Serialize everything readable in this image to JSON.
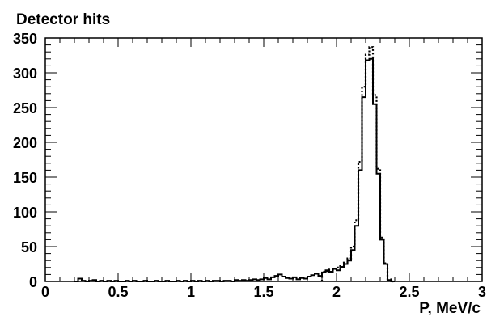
{
  "chart_data": {
    "type": "histogram",
    "title": "Detector hits",
    "xlabel": "P, MeV/c",
    "ylabel": "",
    "xlim": [
      0,
      3
    ],
    "ylim": [
      0,
      350
    ],
    "x_ticks": [
      "0",
      "0.5",
      "1",
      "1.5",
      "2",
      "2.5",
      "3"
    ],
    "y_ticks": [
      "0",
      "50",
      "100",
      "150",
      "200",
      "250",
      "300",
      "350"
    ],
    "grid": false,
    "legend": "none",
    "bin_width": 0.025,
    "series": [
      {
        "style": "solid-step",
        "color": "#000000",
        "bins": [
          [
            0.2,
            0
          ],
          [
            0.225,
            4
          ],
          [
            0.25,
            1
          ],
          [
            0.275,
            0
          ],
          [
            0.3,
            1
          ],
          [
            0.325,
            2
          ],
          [
            0.35,
            0
          ],
          [
            0.375,
            1
          ],
          [
            0.4,
            0
          ],
          [
            0.425,
            1
          ],
          [
            0.45,
            0
          ],
          [
            0.475,
            1
          ],
          [
            0.5,
            0
          ],
          [
            0.525,
            0
          ],
          [
            0.55,
            1
          ],
          [
            0.575,
            0
          ],
          [
            0.6,
            1
          ],
          [
            0.625,
            0
          ],
          [
            0.65,
            0
          ],
          [
            0.675,
            1
          ],
          [
            0.7,
            0
          ],
          [
            0.725,
            0
          ],
          [
            0.75,
            1
          ],
          [
            0.775,
            0
          ],
          [
            0.8,
            0
          ],
          [
            0.825,
            1
          ],
          [
            0.85,
            0
          ],
          [
            0.875,
            0
          ],
          [
            0.9,
            1
          ],
          [
            0.925,
            0
          ],
          [
            0.95,
            1
          ],
          [
            0.975,
            0
          ],
          [
            1.0,
            1
          ],
          [
            1.025,
            0
          ],
          [
            1.05,
            1
          ],
          [
            1.075,
            0
          ],
          [
            1.1,
            1
          ],
          [
            1.125,
            0
          ],
          [
            1.15,
            1
          ],
          [
            1.175,
            1
          ],
          [
            1.2,
            0
          ],
          [
            1.225,
            1
          ],
          [
            1.25,
            1
          ],
          [
            1.275,
            0
          ],
          [
            1.3,
            2
          ],
          [
            1.325,
            1
          ],
          [
            1.35,
            2
          ],
          [
            1.375,
            1
          ],
          [
            1.4,
            2
          ],
          [
            1.425,
            3
          ],
          [
            1.45,
            2
          ],
          [
            1.475,
            3
          ],
          [
            1.5,
            5
          ],
          [
            1.525,
            3
          ],
          [
            1.55,
            6
          ],
          [
            1.575,
            8
          ],
          [
            1.6,
            10
          ],
          [
            1.625,
            7
          ],
          [
            1.65,
            5
          ],
          [
            1.675,
            4
          ],
          [
            1.7,
            6
          ],
          [
            1.725,
            3
          ],
          [
            1.75,
            5
          ],
          [
            1.775,
            4
          ],
          [
            1.8,
            7
          ],
          [
            1.825,
            9
          ],
          [
            1.85,
            11
          ],
          [
            1.875,
            8
          ],
          [
            1.9,
            13
          ],
          [
            1.925,
            16
          ],
          [
            1.95,
            14
          ],
          [
            1.975,
            18
          ],
          [
            2.0,
            16
          ],
          [
            2.025,
            21
          ],
          [
            2.05,
            25
          ],
          [
            2.075,
            30
          ],
          [
            2.1,
            45
          ],
          [
            2.125,
            80
          ],
          [
            2.15,
            160
          ],
          [
            2.175,
            265
          ],
          [
            2.2,
            318
          ],
          [
            2.225,
            320
          ],
          [
            2.25,
            255
          ],
          [
            2.275,
            155
          ],
          [
            2.3,
            60
          ],
          [
            2.325,
            25
          ],
          [
            2.35,
            2
          ],
          [
            2.375,
            0
          ]
        ]
      },
      {
        "style": "dotted-step",
        "color": "#000000",
        "bins": [
          [
            1.9,
            14
          ],
          [
            1.925,
            15
          ],
          [
            1.95,
            17
          ],
          [
            1.975,
            18
          ],
          [
            2.0,
            20
          ],
          [
            2.025,
            22
          ],
          [
            2.05,
            27
          ],
          [
            2.075,
            33
          ],
          [
            2.1,
            50
          ],
          [
            2.125,
            88
          ],
          [
            2.15,
            172
          ],
          [
            2.175,
            280
          ],
          [
            2.2,
            326
          ],
          [
            2.225,
            337
          ],
          [
            2.25,
            268
          ],
          [
            2.275,
            162
          ],
          [
            2.3,
            63
          ],
          [
            2.325,
            26
          ],
          [
            2.35,
            3
          ],
          [
            2.375,
            0
          ]
        ]
      }
    ]
  }
}
